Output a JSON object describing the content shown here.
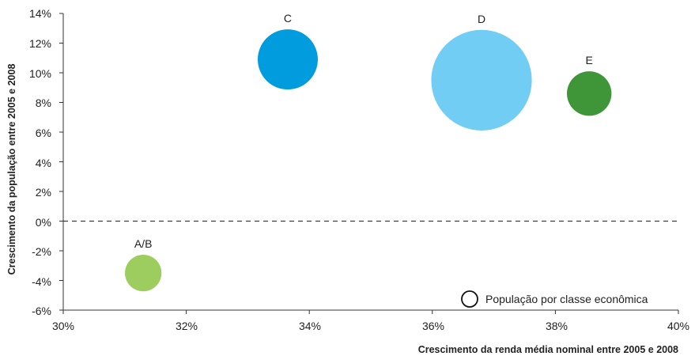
{
  "chart_data": {
    "type": "scatter",
    "title": "",
    "xlabel": "Crescimento da renda média nominal entre 2005 e 2008",
    "ylabel": "Crescimento da população entre 2005 e 2008",
    "xlim": [
      30,
      40
    ],
    "ylim": [
      -6,
      14
    ],
    "x_ticks": [
      "30%",
      "32%",
      "34%",
      "36%",
      "38%",
      "40%"
    ],
    "y_ticks": [
      "14%",
      "12%",
      "10%",
      "8%",
      "6%",
      "4%",
      "2%",
      "0%",
      "-2%",
      "-4%",
      "-6%"
    ],
    "reference_line": {
      "y": 0,
      "style": "dashed"
    },
    "legend": {
      "label": "População por classe econômica",
      "position": "bottom-right"
    },
    "points": [
      {
        "label": "A/B",
        "x": 31.3,
        "y": -3.5,
        "size": 0.37,
        "color": "#9dcd5f"
      },
      {
        "label": "C",
        "x": 33.65,
        "y": 10.9,
        "size": 1.0,
        "color": "#009cde"
      },
      {
        "label": "D",
        "x": 36.8,
        "y": 9.5,
        "size": 2.8,
        "color": "#72cdf4"
      },
      {
        "label": "E",
        "x": 38.55,
        "y": 8.6,
        "size": 0.55,
        "color": "#3f9638"
      }
    ]
  }
}
